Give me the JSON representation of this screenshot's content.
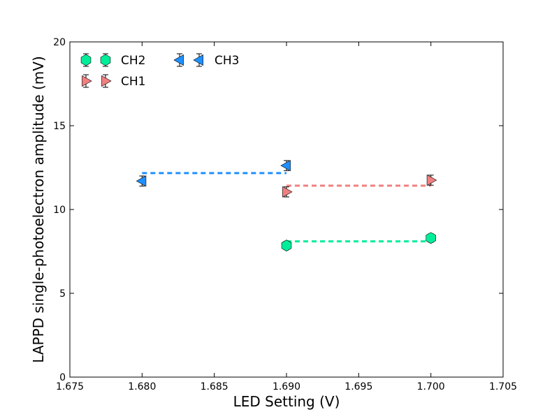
{
  "chart_data": {
    "type": "scatter",
    "title": "",
    "xlabel": "LED Setting (V)",
    "ylabel": "LAPPD single-photoelectron amplitude (mV)",
    "xlim": [
      1.675,
      1.705
    ],
    "ylim": [
      0,
      20
    ],
    "xticks": [
      "1.675",
      "1.680",
      "1.685",
      "1.690",
      "1.695",
      "1.700",
      "1.705"
    ],
    "yticks": [
      "0",
      "5",
      "10",
      "15",
      "20"
    ],
    "grid": false,
    "legend_position": "top-left",
    "series": [
      {
        "name": "CH2",
        "marker": "hexagon",
        "color": "#00ee99",
        "line_color": "#00ee99",
        "points": [
          {
            "x": 1.69,
            "y": 7.85,
            "yerr": 0.25
          },
          {
            "x": 1.7,
            "y": 8.3,
            "yerr": 0.25
          }
        ],
        "fit": {
          "x_range": [
            1.69,
            1.7
          ],
          "y": 8.1
        }
      },
      {
        "name": "CH1",
        "marker": "triangle-right",
        "color": "#f08080",
        "line_color": "#f08080",
        "points": [
          {
            "x": 1.69,
            "y": 11.05,
            "yerr": 0.3
          },
          {
            "x": 1.7,
            "y": 11.75,
            "yerr": 0.3
          }
        ],
        "fit": {
          "x_range": [
            1.69,
            1.7
          ],
          "y": 11.42
        }
      },
      {
        "name": "CH3",
        "marker": "triangle-left",
        "color": "#1e90ff",
        "line_color": "#1e90ff",
        "points": [
          {
            "x": 1.68,
            "y": 11.7,
            "yerr": 0.3
          },
          {
            "x": 1.69,
            "y": 12.62,
            "yerr": 0.3
          }
        ],
        "fit": {
          "x_range": [
            1.68,
            1.69
          ],
          "y": 12.17
        }
      }
    ]
  }
}
